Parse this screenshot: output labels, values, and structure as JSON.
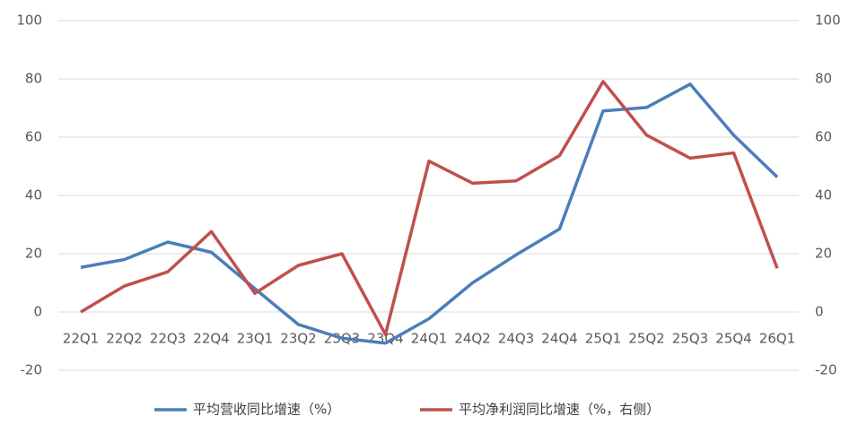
{
  "chart_data": {
    "type": "line",
    "categories": [
      "22Q1",
      "22Q2",
      "22Q3",
      "22Q4",
      "23Q1",
      "23Q2",
      "23Q3",
      "23Q4",
      "24Q1",
      "24Q2",
      "24Q3",
      "24Q4",
      "25Q1",
      "25Q2",
      "25Q3",
      "25Q4",
      "26Q1"
    ],
    "series": [
      {
        "name": "平均营收同比增速（%）",
        "color": "#4a7ebb",
        "values": [
          15.3,
          18,
          24,
          20.5,
          8,
          -4.3,
          -9,
          -10.7,
          -2.3,
          10,
          19.6,
          28.5,
          69,
          70.2,
          78.2,
          60.7,
          46.3
        ]
      },
      {
        "name": "平均净利润同比增速（%，右侧）",
        "color": "#c0504d",
        "axis": "y2",
        "values": [
          0,
          8.9,
          13.8,
          27.6,
          6.4,
          16,
          20,
          -7.7,
          51.8,
          44.2,
          45,
          53.7,
          79.1,
          60.7,
          52.8,
          54.6,
          15
        ]
      }
    ],
    "ylim": [
      -20,
      100
    ],
    "yticks": [
      -20,
      0,
      20,
      40,
      60,
      80,
      100
    ],
    "y2lim": [
      -20,
      100
    ],
    "y2ticks": [
      -20,
      0,
      20,
      40,
      60,
      80,
      100
    ],
    "grid": true,
    "legend": "bottom"
  }
}
